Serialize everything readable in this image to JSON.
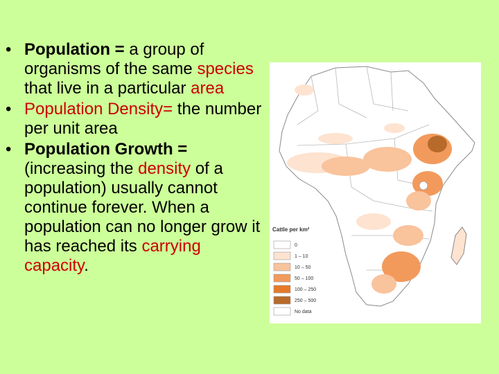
{
  "bullets": [
    {
      "parts": [
        {
          "text": "Population = ",
          "bold": true
        },
        {
          "text": "a group of organisms of the same "
        },
        {
          "text": "species",
          "color": "#cc0000"
        },
        {
          "text": " that live in a particular "
        },
        {
          "text": "area",
          "color": "#cc0000"
        }
      ]
    },
    {
      "parts": [
        {
          "text": "Population Density=",
          "color": "#cc0000"
        },
        {
          "text": " the number per unit area"
        }
      ]
    },
    {
      "parts": [
        {
          "text": "Population Growth = ",
          "bold": true
        },
        {
          "text": "(increasing the "
        },
        {
          "text": "density",
          "color": "#cc0000"
        },
        {
          "text": " of a population) usually cannot continue forever.  When a population can no longer grow it has reached its "
        },
        {
          "text": "carrying capacity",
          "color": "#cc0000"
        },
        {
          "text": "."
        }
      ]
    }
  ],
  "map": {
    "legend_title": "Cattle per km²",
    "legend": [
      {
        "label": "0",
        "color": "#ffffff"
      },
      {
        "label": "1 – 10",
        "color": "#fde3d0"
      },
      {
        "label": "10 – 50",
        "color": "#f9c39c"
      },
      {
        "label": "50 – 100",
        "color": "#f29a5c"
      },
      {
        "label": "100 – 250",
        "color": "#e57a2a"
      },
      {
        "label": "250 – 500",
        "color": "#b86a2a"
      },
      {
        "label": "No data",
        "color": "#ffffff"
      }
    ]
  }
}
